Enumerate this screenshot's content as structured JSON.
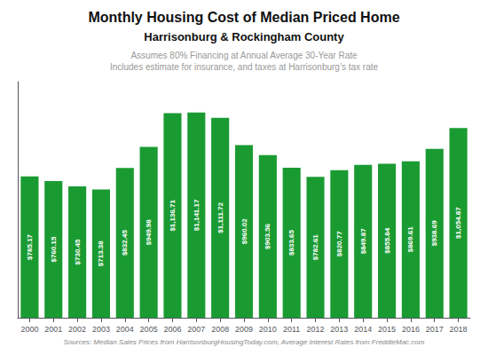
{
  "chart_data": {
    "type": "bar",
    "title": "Monthly Housing Cost of Median Priced Home",
    "subtitle": "Harrisonburg & Rockingham County",
    "annotations": [
      "Assumes 80% Financing at Annual Average 30-Year Rate",
      "Includes estimate for insurance, and taxes at Harrisonburg’s tax rate"
    ],
    "source": "Sources: Median Sales Prices from HarrisonburgHousingToday.com, Average Interest Rates from FreddieMac.com",
    "categories": [
      "2000",
      "2001",
      "2002",
      "2003",
      "2004",
      "2005",
      "2006",
      "2007",
      "2008",
      "2009",
      "2010",
      "2011",
      "2012",
      "2013",
      "2014",
      "2015",
      "2016",
      "2017",
      "2018"
    ],
    "values": [
      785.17,
      760.15,
      730.45,
      713.38,
      832.45,
      949.98,
      1136.71,
      1141.17,
      1111.72,
      960.02,
      903.56,
      833.65,
      782.61,
      820.77,
      849.87,
      855.84,
      869.61,
      938.69,
      1054.87
    ],
    "value_labels": [
      "$785.17",
      "$760.15",
      "$730.45",
      "$713.38",
      "$832.45",
      "$949.98",
      "$1,136.71",
      "$1,141.17",
      "$1,111.72",
      "$960.02",
      "$903.56",
      "$833.65",
      "$782.61",
      "$820.77",
      "$849.87",
      "$855.84",
      "$869.61",
      "$938.69",
      "$1,054.87"
    ],
    "data_labels": true,
    "color": "#1a9b32",
    "ylim": [
      0,
      1312.3455
    ],
    "tick_labels": "x",
    "grid": false
  }
}
